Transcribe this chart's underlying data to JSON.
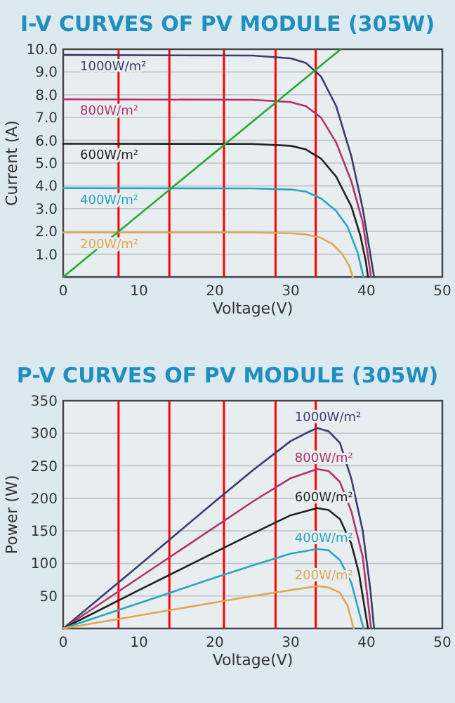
{
  "chart_data": [
    {
      "type": "line",
      "title": "I-V CURVES OF PV MODULE (305W)",
      "xlabel": "Voltage(V)",
      "ylabel": "Current (A)",
      "xlim": [
        0,
        50
      ],
      "xticks": [
        0,
        10,
        20,
        30,
        40,
        50
      ],
      "ylim": [
        0,
        10
      ],
      "yticks": [
        {
          "value": 1,
          "label": "1.0"
        },
        {
          "value": 2,
          "label": "2.0"
        },
        {
          "value": 3,
          "label": "3.0"
        },
        {
          "value": 4,
          "label": "4.0"
        },
        {
          "value": 5,
          "label": "5.0"
        },
        {
          "value": 6,
          "label": "6.0"
        },
        {
          "value": 7,
          "label": "7.0"
        },
        {
          "value": 8,
          "label": "8.0"
        },
        {
          "value": 9,
          "label": "9.0"
        },
        {
          "value": 10,
          "label": "10.0"
        }
      ],
      "grid": "y",
      "legend": false,
      "series": [
        {
          "name": "1000W/m²",
          "color": "#3a3d6e",
          "x": [
            0,
            25,
            30,
            32,
            34,
            36,
            38,
            39.5,
            40.5,
            41
          ],
          "values": [
            9.75,
            9.72,
            9.6,
            9.4,
            8.8,
            7.5,
            5.3,
            3,
            1,
            0
          ]
        },
        {
          "name": "800W/m²",
          "color": "#b0336f",
          "x": [
            0,
            25,
            30,
            32,
            34,
            36,
            38,
            39.5,
            40.2,
            40.6
          ],
          "values": [
            7.8,
            7.78,
            7.68,
            7.5,
            7.0,
            5.9,
            4.2,
            2.4,
            0.9,
            0
          ]
        },
        {
          "name": "600W/m²",
          "color": "#222222",
          "x": [
            0,
            25,
            30,
            32,
            34,
            36,
            38,
            39.2,
            39.9,
            40.2
          ],
          "values": [
            5.85,
            5.84,
            5.76,
            5.6,
            5.2,
            4.4,
            3.1,
            1.8,
            0.7,
            0
          ]
        },
        {
          "name": "400W/m²",
          "color": "#2aa6c0",
          "x": [
            0,
            25,
            30,
            32,
            34,
            36,
            37.5,
            38.8,
            39.6
          ],
          "values": [
            3.9,
            3.89,
            3.84,
            3.75,
            3.45,
            2.9,
            2.2,
            1.1,
            0
          ]
        },
        {
          "name": "200W/m²",
          "color": "#e0a850",
          "x": [
            0,
            25,
            30,
            32,
            34,
            35.5,
            36.8,
            37.7,
            38.2
          ],
          "values": [
            1.95,
            1.95,
            1.92,
            1.87,
            1.72,
            1.45,
            1.0,
            0.5,
            0
          ]
        },
        {
          "color": "#22aa33",
          "x": [
            0,
            36.6
          ],
          "values": [
            0,
            10
          ]
        }
      ],
      "ref_lines": [
        {
          "axis": "x",
          "value": 7.3,
          "color": "#ff0000"
        },
        {
          "axis": "x",
          "value": 14,
          "color": "#ff0000"
        },
        {
          "axis": "x",
          "value": 21.2,
          "color": "#ff0000"
        },
        {
          "axis": "x",
          "value": 28,
          "color": "#ff0000"
        },
        {
          "axis": "x",
          "value": 33.3,
          "color": "#ff0000"
        }
      ]
    },
    {
      "type": "line",
      "title": "P-V CURVES OF PV MODULE (305W)",
      "xlabel": "Voltage(V)",
      "ylabel": "Power (W)",
      "xlim": [
        0,
        50
      ],
      "xticks": [
        0,
        10,
        20,
        30,
        40,
        50
      ],
      "ylim": [
        0,
        350
      ],
      "yticks": [
        50,
        100,
        150,
        200,
        250,
        300,
        350
      ],
      "grid": "y",
      "legend": false,
      "series": [
        {
          "name": "1000W/m²",
          "color": "#3a3d6e",
          "x": [
            0,
            10,
            20,
            25,
            30,
            32,
            33.5,
            35,
            36.5,
            38,
            39.5,
            40.5,
            41
          ],
          "values": [
            0,
            97,
            195,
            243,
            288,
            300,
            308,
            303,
            285,
            230,
            150,
            60,
            0
          ]
        },
        {
          "name": "800W/m²",
          "color": "#b0336f",
          "x": [
            0,
            10,
            20,
            25,
            30,
            33.5,
            35,
            36.5,
            38,
            39.5,
            40.6
          ],
          "values": [
            0,
            78,
            156,
            195,
            231,
            245,
            242,
            225,
            180,
            110,
            0
          ]
        },
        {
          "name": "600W/m²",
          "color": "#222222",
          "x": [
            0,
            10,
            20,
            25,
            30,
            33.5,
            35,
            36.5,
            38,
            39,
            40.2
          ],
          "values": [
            0,
            59,
            117,
            146,
            174,
            185,
            182,
            168,
            130,
            85,
            0
          ]
        },
        {
          "name": "400W/m²",
          "color": "#2aa6c0",
          "x": [
            0,
            10,
            20,
            25,
            30,
            33.5,
            35,
            36.5,
            38,
            39.6
          ],
          "values": [
            0,
            39,
            78,
            97,
            115,
            122,
            120,
            105,
            70,
            0
          ]
        },
        {
          "name": "200W/m²",
          "color": "#e0a850",
          "x": [
            0,
            10,
            20,
            25,
            30,
            33.5,
            35,
            36.5,
            37.5,
            38.3
          ],
          "values": [
            0,
            20,
            40,
            50,
            59,
            65,
            63,
            55,
            35,
            0
          ]
        }
      ],
      "ref_lines": [
        {
          "axis": "x",
          "value": 7.3,
          "color": "#ff0000"
        },
        {
          "axis": "x",
          "value": 14,
          "color": "#ff0000"
        },
        {
          "axis": "x",
          "value": 21.2,
          "color": "#ff0000"
        },
        {
          "axis": "x",
          "value": 28,
          "color": "#ff0000"
        },
        {
          "axis": "x",
          "value": 33.3,
          "color": "#ff0000"
        }
      ]
    }
  ]
}
